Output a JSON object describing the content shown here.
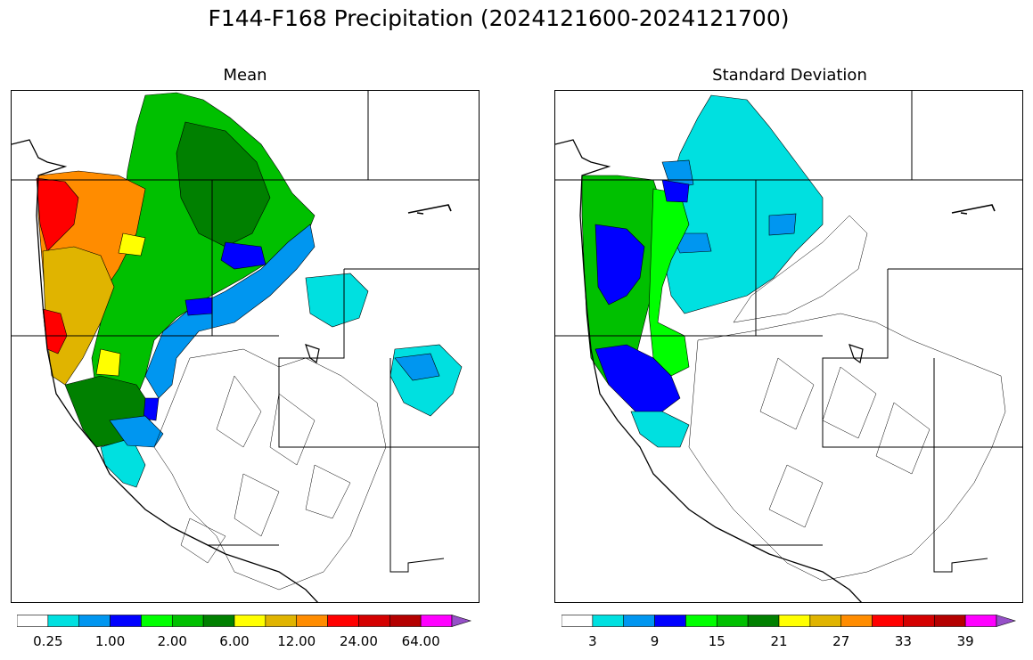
{
  "title": "F144-F168 Precipitation (2024121600-2024121700)",
  "panels": [
    {
      "title": "Mean"
    },
    {
      "title": "Standard Deviation"
    }
  ],
  "mean_colorbar": {
    "colors": [
      "#ffffff",
      "#00e0e0",
      "#0096f0",
      "#0000ff",
      "#00ff00",
      "#00c000",
      "#008000",
      "#ffff00",
      "#e0b400",
      "#ff8c00",
      "#ff0000",
      "#d40000",
      "#b40000",
      "#ff00ff",
      "#9650c8"
    ],
    "tick_labels": [
      "0.25",
      "1.00",
      "2.00",
      "6.00",
      "12.00",
      "24.00",
      "64.00"
    ],
    "extend": "max"
  },
  "sd_colorbar": {
    "colors": [
      "#ffffff",
      "#00e0e0",
      "#0096f0",
      "#0000ff",
      "#00ff00",
      "#00c000",
      "#008000",
      "#ffff00",
      "#e0b400",
      "#ff8c00",
      "#ff0000",
      "#d40000",
      "#b40000",
      "#ff00ff",
      "#9650c8"
    ],
    "tick_labels": [
      "3",
      "9",
      "15",
      "21",
      "27",
      "33",
      "39"
    ],
    "extend": "max"
  },
  "map_regions": {
    "mean": [
      {
        "name": "wa-coast",
        "color": "#ff0000"
      },
      {
        "name": "wa-orange",
        "color": "#ff8c00"
      },
      {
        "name": "or-coast",
        "color": "#e0b400"
      },
      {
        "name": "nca-coast",
        "color": "#ff0000"
      },
      {
        "name": "inland-green",
        "color": "#00c000"
      },
      {
        "name": "idaho-green",
        "color": "#008000"
      },
      {
        "name": "blue-band",
        "color": "#0096f0"
      },
      {
        "name": "cyan-east",
        "color": "#00e0e0"
      },
      {
        "name": "dark-blue",
        "color": "#0000ff"
      },
      {
        "name": "yellow",
        "color": "#ffff00"
      }
    ],
    "sd": [
      {
        "name": "coast-blue",
        "color": "#0000ff"
      },
      {
        "name": "coast-green",
        "color": "#00c000"
      },
      {
        "name": "bright-green",
        "color": "#00ff00"
      },
      {
        "name": "interior-cyan",
        "color": "#00e0e0"
      },
      {
        "name": "mid-blue",
        "color": "#0096f0"
      }
    ]
  }
}
